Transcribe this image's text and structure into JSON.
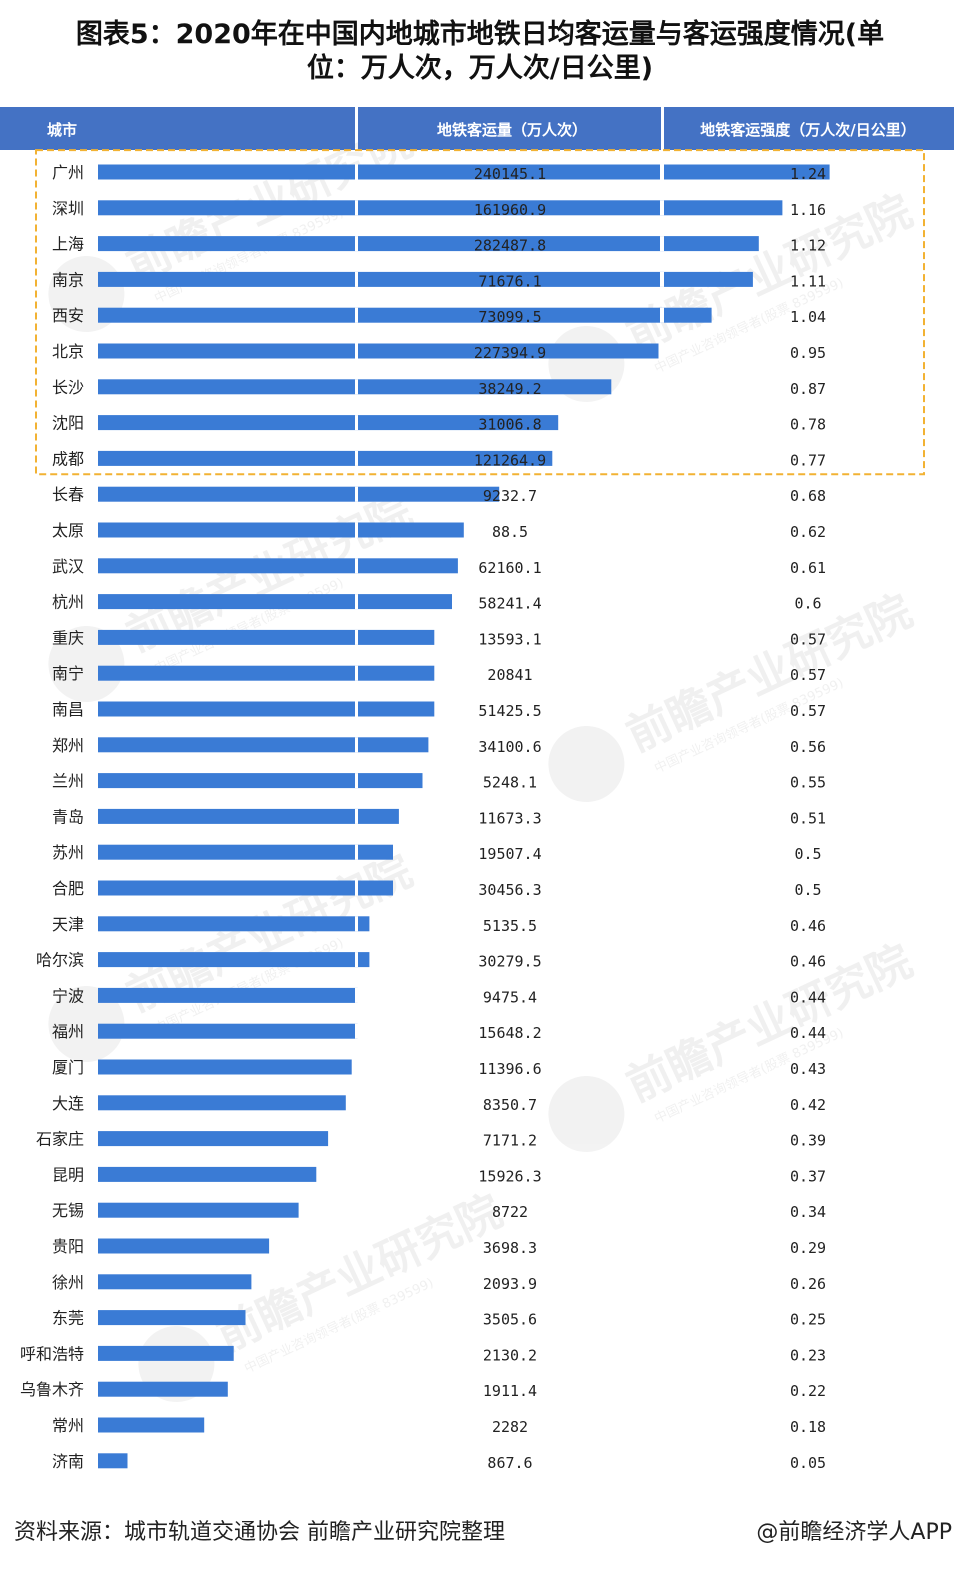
{
  "title_line1": "图表5：2020年在中国内地城市地铁日均客运量与客运强度情况(单",
  "title_line2": "位：万人次，万人次/日公里)",
  "source": "资料来源：城市轨道交通协会 前瞻产业研究院整理",
  "credit": "@前瞻经济学人APP",
  "watermark": {
    "brand": "前瞻产业研究院",
    "sub": "中国产业咨询领导者(股票 839599)"
  },
  "colors": {
    "bar": "#3a7bd5",
    "header": "#4472c4",
    "header_text": "#ffffff",
    "highlight_box": "#f2b233"
  },
  "chart_data": {
    "type": "bar",
    "orientation": "horizontal",
    "headers": [
      "城市",
      "地铁客运量（万人次）",
      "地铁客运强度（万人次/日公里）"
    ],
    "categories": [
      "广州",
      "深圳",
      "上海",
      "南京",
      "西安",
      "北京",
      "长沙",
      "沈阳",
      "成都",
      "长春",
      "太原",
      "武汉",
      "杭州",
      "重庆",
      "南宁",
      "南昌",
      "郑州",
      "兰州",
      "青岛",
      "苏州",
      "合肥",
      "天津",
      "哈尔滨",
      "宁波",
      "福州",
      "厦门",
      "大连",
      "石家庄",
      "昆明",
      "无锡",
      "贵阳",
      "徐州",
      "东莞",
      "呼和浩特",
      "乌鲁木齐",
      "常州",
      "济南"
    ],
    "passenger_volume": [
      "240145.1",
      "161960.9",
      "282487.8",
      "71676.1",
      "73099.5",
      "227394.9",
      "38249.2",
      "31006.8",
      "121264.9",
      "9232.7",
      "88.5",
      "62160.1",
      "58241.4",
      "13593.1",
      "20841",
      "51425.5",
      "34100.6",
      "5248.1",
      "11673.3",
      "19507.4",
      "30456.3",
      "5135.5",
      "30279.5",
      "9475.4",
      "15648.2",
      "11396.6",
      "8350.7",
      "7171.2",
      "15926.3",
      "8722",
      "3698.3",
      "2093.9",
      "3505.6",
      "2130.2",
      "1911.4",
      "2282",
      "867.6"
    ],
    "intensity": [
      1.24,
      1.16,
      1.12,
      1.11,
      1.04,
      0.95,
      0.87,
      0.78,
      0.77,
      0.68,
      0.62,
      0.61,
      0.6,
      0.57,
      0.57,
      0.57,
      0.56,
      0.55,
      0.51,
      0.5,
      0.5,
      0.46,
      0.46,
      0.44,
      0.44,
      0.43,
      0.42,
      0.39,
      0.37,
      0.34,
      0.29,
      0.26,
      0.25,
      0.23,
      0.22,
      0.18,
      0.05
    ],
    "intensity_labels": [
      "1.24",
      "1.16",
      "1.12",
      "1.11",
      "1.04",
      "0.95",
      "0.87",
      "0.78",
      "0.77",
      "0.68",
      "0.62",
      "0.61",
      "0.6",
      "0.57",
      "0.57",
      "0.57",
      "0.56",
      "0.55",
      "0.51",
      "0.5",
      "0.5",
      "0.46",
      "0.46",
      "0.44",
      "0.44",
      "0.43",
      "0.42",
      "0.39",
      "0.37",
      "0.34",
      "0.29",
      "0.26",
      "0.25",
      "0.23",
      "0.22",
      "0.18",
      "0.05"
    ],
    "bar_series": "intensity",
    "highlighted_top": 9
  }
}
